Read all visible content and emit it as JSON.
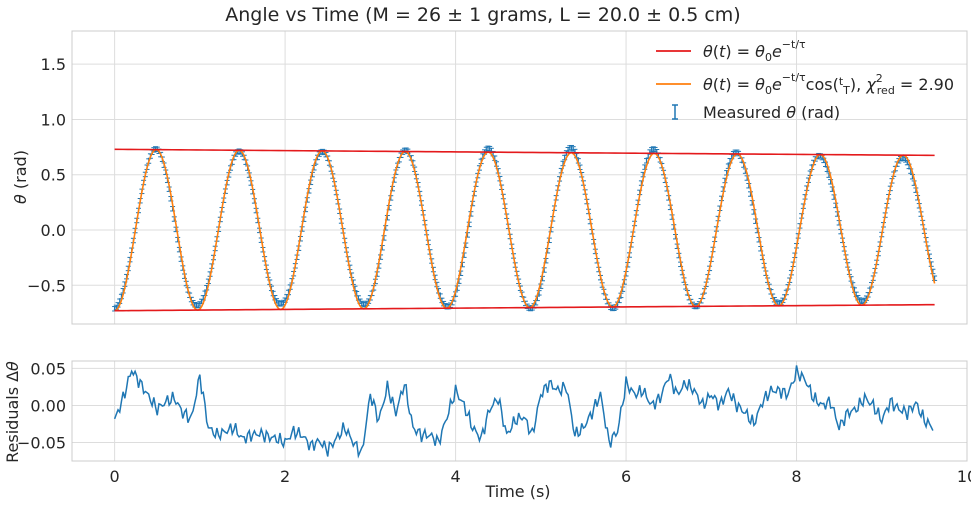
{
  "chart_data": [
    {
      "type": "line",
      "title": "Angle vs Time (M = 26 ± 1 grams, L = 20.0 ± 0.5 cm)",
      "ylabel": "θ (rad)",
      "xlim": [
        -0.5,
        10.0
      ],
      "ylim": [
        -0.85,
        1.8
      ],
      "xticks": [
        0,
        2,
        4,
        6,
        8,
        10
      ],
      "yticks": [
        -0.5,
        0.0,
        0.5,
        1.0,
        1.5
      ],
      "ytick_labels": [
        "−0.5",
        "0.0",
        "0.5",
        "1.0",
        "1.5"
      ],
      "grid": true,
      "legend_position": "top-right",
      "legend": [
        {
          "label": "θ(t) = θ₀e^(−t/τ)",
          "color": "#e41a1c",
          "marker": "line"
        },
        {
          "label": "θ(t) = θ₀e^(−t/τ)cos(t/T),  χ²_red = 2.90",
          "color": "#ff7f0e",
          "marker": "line"
        },
        {
          "label": "Measured θ (rad)",
          "color": "#1f77b4",
          "marker": "errorbar"
        }
      ],
      "series": [
        {
          "kind": "envelope",
          "color": "#e41a1c",
          "theta0": 0.73,
          "tau": 123,
          "t_start": 0.0,
          "t_end": 9.62,
          "both_signs": true
        },
        {
          "kind": "fit",
          "color": "#ff7f0e",
          "amplitude": 0.73,
          "tau": 123,
          "period": 0.974,
          "t_start": 0.0,
          "t_end": 9.62
        },
        {
          "kind": "measured",
          "color": "#1f77b4",
          "t_start": 0.0,
          "t_end": 9.62,
          "step": 0.02,
          "amplitude": 0.73,
          "period": 0.974,
          "tau": 123,
          "error": 0.02
        }
      ]
    },
    {
      "type": "line",
      "ylabel": "Residuals Δθ",
      "xlabel": "Time (s)",
      "xlim": [
        -0.5,
        10.0
      ],
      "ylim": [
        -0.075,
        0.06
      ],
      "xticks": [
        0,
        2,
        4,
        6,
        8,
        10
      ],
      "xtick_labels": [
        "0",
        "2",
        "4",
        "6",
        "8",
        "10"
      ],
      "yticks": [
        -0.05,
        0.0,
        0.05
      ],
      "ytick_labels": [
        "−0.05",
        "0.00",
        "0.05"
      ],
      "grid": true,
      "series": [
        {
          "color": "#1f77b4",
          "x": [
            0.0,
            0.1,
            0.2,
            0.3,
            0.4,
            0.5,
            0.6,
            0.7,
            0.8,
            0.9,
            1.0,
            1.1,
            1.2,
            1.3,
            1.4,
            1.5,
            1.6,
            1.7,
            1.8,
            1.9,
            2.0,
            2.1,
            2.2,
            2.3,
            2.4,
            2.5,
            2.6,
            2.7,
            2.8,
            2.9,
            3.0,
            3.1,
            3.2,
            3.3,
            3.4,
            3.5,
            3.6,
            3.7,
            3.8,
            3.9,
            4.0,
            4.1,
            4.2,
            4.3,
            4.4,
            4.5,
            4.6,
            4.7,
            4.8,
            4.9,
            5.0,
            5.1,
            5.2,
            5.3,
            5.4,
            5.5,
            5.6,
            5.7,
            5.8,
            5.9,
            6.0,
            6.1,
            6.2,
            6.3,
            6.4,
            6.5,
            6.6,
            6.7,
            6.8,
            6.9,
            7.0,
            7.1,
            7.2,
            7.3,
            7.4,
            7.5,
            7.6,
            7.7,
            7.8,
            7.9,
            8.0,
            8.1,
            8.2,
            8.3,
            8.4,
            8.5,
            8.6,
            8.7,
            8.8,
            8.9,
            9.0,
            9.1,
            9.2,
            9.3,
            9.4,
            9.5,
            9.6
          ],
          "values": [
            -0.02,
            0.01,
            0.048,
            0.03,
            0.012,
            -0.005,
            0.005,
            0.01,
            -0.01,
            -0.018,
            0.04,
            -0.03,
            -0.04,
            -0.035,
            -0.03,
            -0.045,
            -0.04,
            -0.038,
            -0.042,
            -0.045,
            -0.05,
            -0.035,
            -0.04,
            -0.055,
            -0.048,
            -0.06,
            -0.045,
            -0.03,
            -0.05,
            -0.065,
            0.015,
            -0.02,
            0.025,
            -0.01,
            0.03,
            -0.03,
            -0.04,
            -0.04,
            -0.05,
            -0.015,
            0.02,
            0.0,
            -0.03,
            -0.045,
            -0.005,
            0.01,
            -0.04,
            -0.02,
            -0.015,
            -0.04,
            0.015,
            0.03,
            0.02,
            0.025,
            -0.04,
            -0.03,
            -0.01,
            0.015,
            -0.05,
            -0.035,
            0.03,
            0.015,
            0.02,
            0.0,
            0.01,
            0.04,
            0.015,
            0.03,
            0.02,
            0.0,
            0.015,
            0.0,
            0.02,
            0.0,
            -0.01,
            -0.025,
            0.005,
            0.02,
            0.02,
            0.015,
            0.045,
            0.035,
            0.01,
            0.0,
            0.005,
            -0.03,
            -0.01,
            -0.005,
            0.01,
            0.0,
            -0.02,
            0.005,
            -0.005,
            -0.01,
            0.003,
            -0.02,
            -0.03
          ]
        }
      ]
    }
  ]
}
